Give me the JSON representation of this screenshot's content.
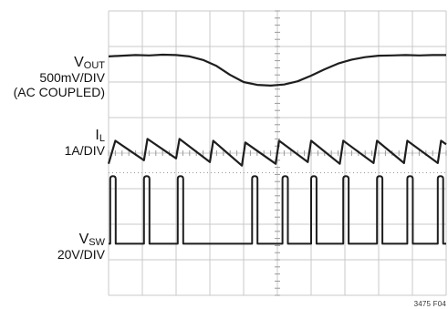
{
  "figure_number": "3475 F04",
  "channels": [
    {
      "symbol": "V",
      "subscript": "OUT",
      "scale": "500mV/DIV",
      "note": "(AC COUPLED)"
    },
    {
      "symbol": "I",
      "subscript": "L",
      "scale": "1A/DIV",
      "note": ""
    },
    {
      "symbol": "V",
      "subscript": "SW",
      "scale": "20V/DIV",
      "note": ""
    }
  ],
  "colors": {
    "background": "#ffffff",
    "grid": "#c8c8c8",
    "trace": "#1e1e1e",
    "tick": "#9a9a9a"
  },
  "chart_data": {
    "type": "line",
    "title": "",
    "xlabel": "",
    "ylabel": "",
    "xlim": [
      0,
      10
    ],
    "ylim": [
      0,
      8
    ],
    "grid": true,
    "divisions": {
      "x": 10,
      "y": 8
    },
    "series": [
      {
        "name": "VOUT",
        "x": [
          0,
          0.4,
          0.8,
          1.2,
          1.6,
          2.0,
          2.4,
          2.8,
          3.2,
          3.6,
          4.0,
          4.4,
          4.8,
          5.2,
          5.6,
          6.0,
          6.4,
          6.8,
          7.2,
          7.6,
          8.0,
          8.4,
          8.8,
          9.2,
          9.6,
          10.0
        ],
        "y": [
          6.72,
          6.74,
          6.76,
          6.75,
          6.77,
          6.76,
          6.72,
          6.62,
          6.45,
          6.2,
          6.0,
          5.92,
          5.9,
          5.93,
          6.02,
          6.18,
          6.36,
          6.52,
          6.63,
          6.7,
          6.74,
          6.75,
          6.76,
          6.75,
          6.76,
          6.76
        ]
      },
      {
        "name": "IL",
        "x": [
          0,
          0.2,
          1.05,
          1.15,
          2.0,
          2.1,
          3.0,
          3.1,
          3.95,
          4.05,
          4.95,
          5.05,
          5.9,
          6.0,
          6.85,
          6.95,
          7.85,
          7.95,
          8.75,
          8.85,
          9.75,
          9.85,
          10.0
        ],
        "y": [
          3.7,
          4.35,
          3.8,
          4.4,
          3.85,
          4.4,
          3.75,
          4.35,
          3.65,
          4.3,
          3.7,
          4.35,
          3.75,
          4.35,
          3.7,
          4.35,
          3.72,
          4.35,
          3.72,
          4.35,
          3.72,
          4.35,
          4.25
        ]
      },
      {
        "name": "VSW",
        "baseline": 1.45,
        "high": 3.35,
        "pulse_width": 0.16,
        "pulses_at": [
          0.05,
          1.05,
          2.05,
          4.25,
          5.15,
          6.0,
          6.95,
          7.95,
          8.85,
          9.75
        ]
      }
    ]
  }
}
